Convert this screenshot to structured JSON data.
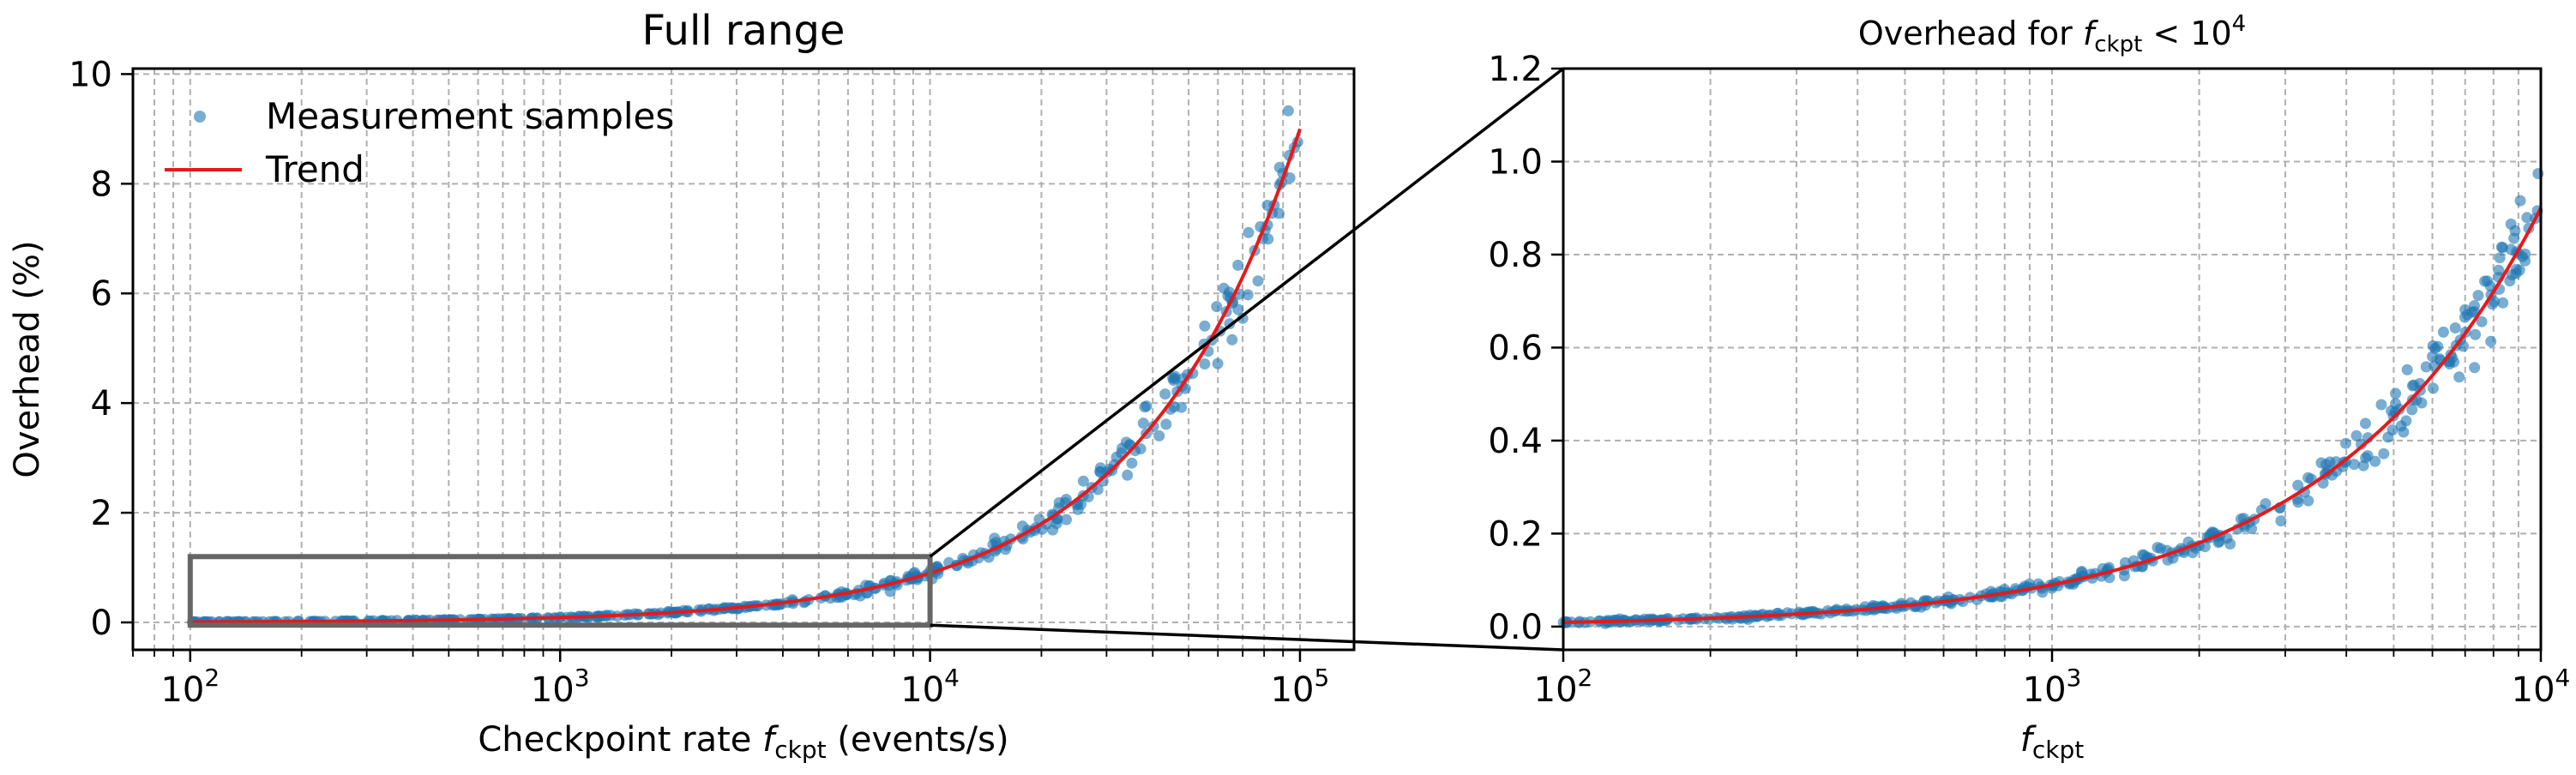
{
  "chart_data": [
    {
      "type": "scatter",
      "title": "Full range",
      "xlabel": {
        "pre": "Checkpoint rate ",
        "var": "f",
        "sub": "ckpt",
        "post": " (events/s)"
      },
      "ylabel": "Overhead (%)",
      "xscale": "log",
      "xlim": [
        70,
        140000
      ],
      "ylim": [
        -0.5,
        10.1
      ],
      "xticks": [
        {
          "value": 100,
          "base": "10",
          "exp": "2"
        },
        {
          "value": 1000,
          "base": "10",
          "exp": "3"
        },
        {
          "value": 10000,
          "base": "10",
          "exp": "4"
        },
        {
          "value": 100000,
          "base": "10",
          "exp": "5"
        }
      ],
      "yticks": [
        0,
        2,
        4,
        6,
        8,
        10
      ],
      "grid": true,
      "legend": {
        "position": "top-left",
        "entries": [
          "Measurement samples",
          "Trend"
        ]
      },
      "series": [
        {
          "name": "Measurement samples",
          "kind": "scatter",
          "color": "#1f77b4",
          "x_range": [
            100,
            100000
          ],
          "model": "overhead = 0.009 * (f/100)^1.0",
          "approx_count": 400
        },
        {
          "name": "Trend",
          "kind": "line",
          "color": "#e41a1c",
          "points": [
            [
              100,
              0.009
            ],
            [
              1000,
              0.09
            ],
            [
              10000,
              0.9
            ],
            [
              30000,
              2.7
            ],
            [
              50000,
              4.5
            ],
            [
              100000,
              9.0
            ]
          ]
        }
      ],
      "inset_region": {
        "x": [
          100,
          10000
        ],
        "y": [
          -0.05,
          1.2
        ]
      }
    },
    {
      "type": "scatter",
      "title": {
        "pre": "Overhead for ",
        "var": "f",
        "sub": "ckpt",
        "mid": " < 10",
        "sup": "4"
      },
      "xlabel": {
        "var": "f",
        "sub": "ckpt"
      },
      "ylabel": "",
      "xscale": "log",
      "xlim": [
        100,
        10000
      ],
      "ylim": [
        -0.05,
        1.2
      ],
      "xticks": [
        {
          "value": 100,
          "base": "10",
          "exp": "2"
        },
        {
          "value": 1000,
          "base": "10",
          "exp": "3"
        },
        {
          "value": 10000,
          "base": "10",
          "exp": "4"
        }
      ],
      "yticks": [
        "0.0",
        "0.2",
        "0.4",
        "0.6",
        "0.8",
        "1.0",
        "1.2"
      ],
      "grid": true,
      "series": [
        {
          "name": "Measurement samples",
          "kind": "scatter",
          "color": "#1f77b4",
          "x_range": [
            100,
            10000
          ],
          "model": "overhead = 0.009 * (f/100)^1.0",
          "approx_count": 400
        },
        {
          "name": "Trend",
          "kind": "line",
          "color": "#e41a1c",
          "points": [
            [
              100,
              0.009
            ],
            [
              300,
              0.027
            ],
            [
              1000,
              0.09
            ],
            [
              3000,
              0.27
            ],
            [
              5000,
              0.45
            ],
            [
              10000,
              0.9
            ]
          ]
        }
      ]
    }
  ]
}
